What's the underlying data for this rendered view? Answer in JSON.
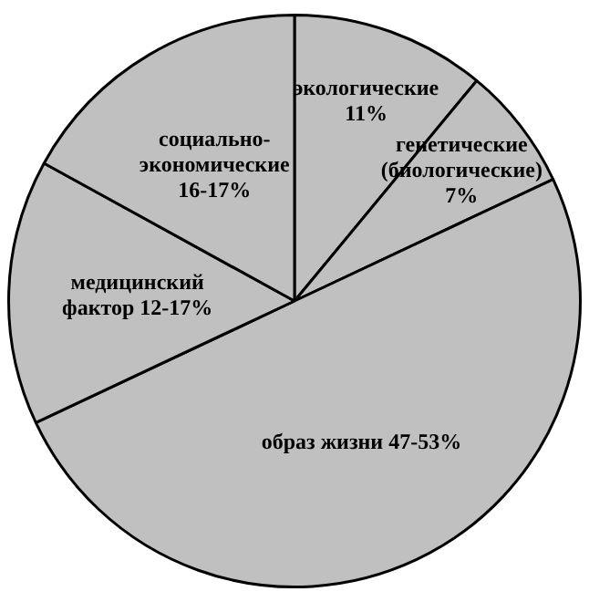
{
  "chart_data": {
    "type": "pie",
    "categories": [
      "экологические",
      "генетические (биологические)",
      "образ жизни 47-53%",
      "медицинский фактор 12-17%",
      "социально-экономические 16-17%"
    ],
    "values": [
      11,
      7,
      50,
      15,
      17
    ],
    "value_labels": [
      "11%",
      "7%",
      null,
      null,
      null
    ],
    "colors": [
      "#c0c0c0",
      "#c0c0c0",
      "#c0c0c0",
      "#c0c0c0",
      "#c0c0c0"
    ],
    "legend": false
  }
}
